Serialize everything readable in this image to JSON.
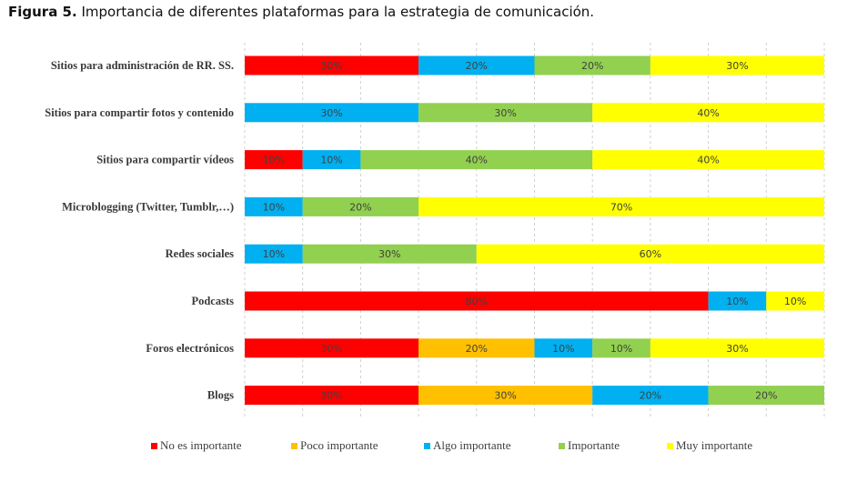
{
  "figure": {
    "caption_prefix": "Figura 5.",
    "caption_text": "Importancia de diferentes plataformas para la estrategia de comunicación."
  },
  "chart_data": {
    "type": "bar",
    "orientation": "horizontal",
    "stacked": "100%",
    "categories": [
      "Sitios para administración de RR. SS.",
      "Sitios para compartir fotos y contenido",
      "Sitios para compartir vídeos",
      "Microblogging (Twitter, Tumblr,…)",
      "Redes sociales",
      "Podcasts",
      "Foros electrónicos",
      "Blogs"
    ],
    "series": [
      {
        "name": "No es importante",
        "color": "#ff0000",
        "values": [
          30,
          0,
          10,
          0,
          0,
          80,
          30,
          30
        ]
      },
      {
        "name": "Poco importante",
        "color": "#ffc000",
        "values": [
          0,
          0,
          0,
          0,
          0,
          0,
          20,
          30
        ]
      },
      {
        "name": "Algo importante",
        "color": "#00b0f0",
        "values": [
          20,
          30,
          10,
          10,
          10,
          10,
          10,
          20
        ]
      },
      {
        "name": "Importante",
        "color": "#92d050",
        "values": [
          20,
          30,
          40,
          20,
          30,
          0,
          10,
          20
        ]
      },
      {
        "name": "Muy importante",
        "color": "#ffff00",
        "values": [
          30,
          40,
          40,
          70,
          60,
          10,
          30,
          0
        ]
      }
    ],
    "value_suffix": "%",
    "xlim": [
      0,
      100
    ],
    "grid": "vertical dashed",
    "legend": "bottom"
  }
}
